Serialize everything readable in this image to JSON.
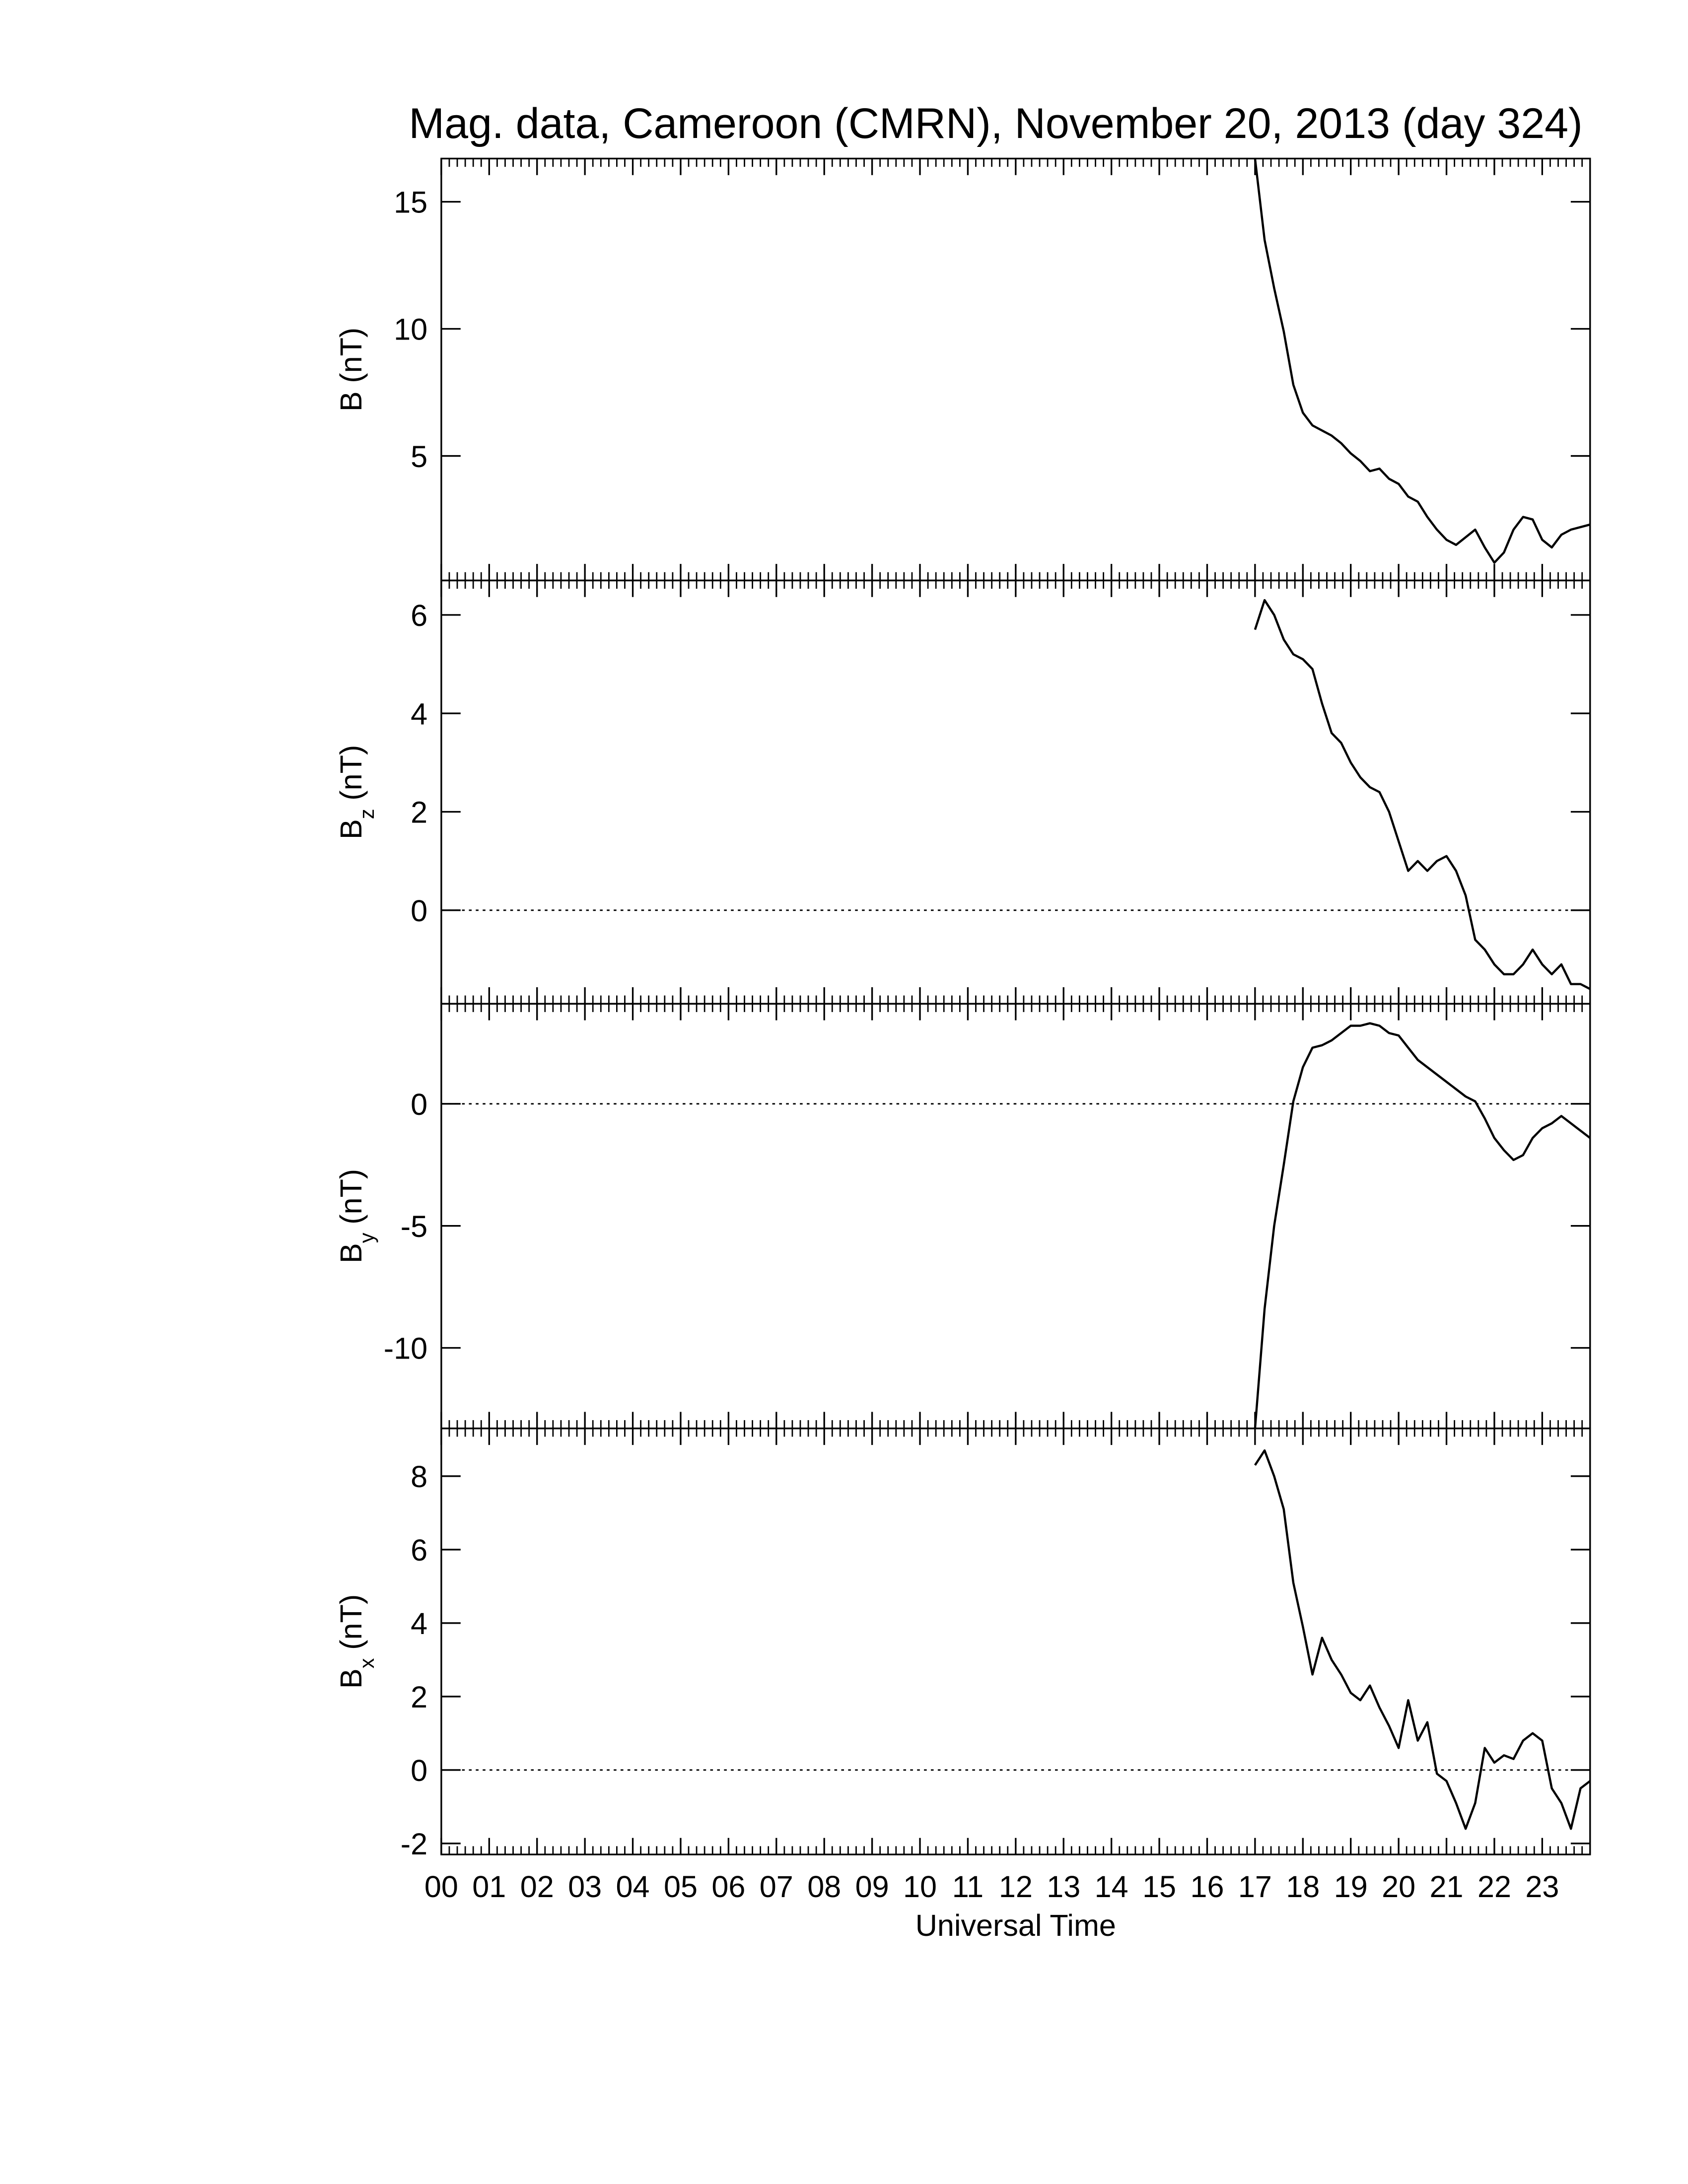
{
  "chart_data": [
    {
      "type": "line",
      "title": "Mag. data, Cameroon (CMRN), November 20, 2013 (day 324)",
      "ylabel": "B",
      "ylabel_unit": "(nT)",
      "color": "#000000",
      "xlim": [
        0,
        24
      ],
      "xticks": [
        0,
        1,
        2,
        3,
        4,
        5,
        6,
        7,
        8,
        9,
        10,
        11,
        12,
        13,
        14,
        15,
        16,
        17,
        18,
        19,
        20,
        21,
        22,
        23
      ],
      "x_minor_per_major": 6,
      "ylim": [
        0.1,
        16.7
      ],
      "yticks": [
        5,
        10,
        15
      ],
      "zero_line": false,
      "x": [
        17.0,
        17.2,
        17.4,
        17.6,
        17.8,
        18.0,
        18.2,
        18.4,
        18.6,
        18.8,
        19.0,
        19.2,
        19.4,
        19.6,
        19.8,
        20.0,
        20.2,
        20.4,
        20.6,
        20.8,
        21.0,
        21.2,
        21.4,
        21.6,
        21.8,
        22.0,
        22.2,
        22.4,
        22.6,
        22.8,
        23.0,
        23.2,
        23.4,
        23.6,
        23.8,
        24.0
      ],
      "values": [
        16.7,
        13.5,
        11.6,
        9.9,
        7.8,
        6.7,
        6.2,
        6.0,
        5.8,
        5.5,
        5.1,
        4.8,
        4.4,
        4.5,
        4.1,
        3.9,
        3.4,
        3.2,
        2.6,
        2.1,
        1.7,
        1.5,
        1.8,
        2.1,
        1.4,
        0.8,
        1.2,
        2.1,
        2.6,
        2.5,
        1.7,
        1.4,
        1.9,
        2.1,
        2.2,
        2.3
      ]
    },
    {
      "type": "line",
      "ylabel": "B",
      "ylabel_sub": "z",
      "ylabel_unit": "(nT)",
      "color": "#000000",
      "xlim": [
        0,
        24
      ],
      "xticks": [
        0,
        1,
        2,
        3,
        4,
        5,
        6,
        7,
        8,
        9,
        10,
        11,
        12,
        13,
        14,
        15,
        16,
        17,
        18,
        19,
        20,
        21,
        22,
        23
      ],
      "x_minor_per_major": 6,
      "ylim": [
        -1.9,
        6.7
      ],
      "yticks": [
        0,
        2,
        4,
        6
      ],
      "zero_line": true,
      "x": [
        17.0,
        17.2,
        17.4,
        17.6,
        17.8,
        18.0,
        18.2,
        18.4,
        18.6,
        18.8,
        19.0,
        19.2,
        19.4,
        19.6,
        19.8,
        20.0,
        20.2,
        20.4,
        20.6,
        20.8,
        21.0,
        21.2,
        21.4,
        21.6,
        21.8,
        22.0,
        22.2,
        22.4,
        22.6,
        22.8,
        23.0,
        23.2,
        23.4,
        23.6,
        23.8,
        24.0
      ],
      "values": [
        5.7,
        6.3,
        6.0,
        5.5,
        5.2,
        5.1,
        4.9,
        4.2,
        3.6,
        3.4,
        3.0,
        2.7,
        2.5,
        2.4,
        2.0,
        1.4,
        0.8,
        1.0,
        0.8,
        1.0,
        1.1,
        0.8,
        0.3,
        -0.6,
        -0.8,
        -1.1,
        -1.3,
        -1.3,
        -1.1,
        -0.8,
        -1.1,
        -1.3,
        -1.1,
        -1.5,
        -1.5,
        -1.6
      ]
    },
    {
      "type": "line",
      "ylabel": "B",
      "ylabel_sub": "y",
      "ylabel_unit": "(nT)",
      "color": "#000000",
      "xlim": [
        0,
        24
      ],
      "xticks": [
        0,
        1,
        2,
        3,
        4,
        5,
        6,
        7,
        8,
        9,
        10,
        11,
        12,
        13,
        14,
        15,
        16,
        17,
        18,
        19,
        20,
        21,
        22,
        23
      ],
      "x_minor_per_major": 6,
      "ylim": [
        -13.3,
        4.1
      ],
      "yticks": [
        -10,
        -5,
        0
      ],
      "zero_line": true,
      "x": [
        17.0,
        17.2,
        17.4,
        17.6,
        17.8,
        18.0,
        18.2,
        18.4,
        18.6,
        18.8,
        19.0,
        19.2,
        19.4,
        19.6,
        19.8,
        20.0,
        20.2,
        20.4,
        20.6,
        20.8,
        21.0,
        21.2,
        21.4,
        21.6,
        21.8,
        22.0,
        22.2,
        22.4,
        22.6,
        22.8,
        23.0,
        23.2,
        23.4,
        23.6,
        23.8,
        24.0
      ],
      "values": [
        -13.3,
        -8.4,
        -5.0,
        -2.5,
        0.1,
        1.5,
        2.3,
        2.4,
        2.6,
        2.9,
        3.2,
        3.2,
        3.3,
        3.2,
        2.9,
        2.8,
        2.3,
        1.8,
        1.5,
        1.2,
        0.9,
        0.6,
        0.3,
        0.1,
        -0.6,
        -1.4,
        -1.9,
        -2.3,
        -2.1,
        -1.4,
        -1.0,
        -0.8,
        -0.5,
        -0.8,
        -1.1,
        -1.4
      ]
    },
    {
      "type": "line",
      "ylabel": "B",
      "ylabel_sub": "x",
      "ylabel_unit": "(nT)",
      "color": "#000000",
      "xlabel": "Universal Time",
      "xlim": [
        0,
        24
      ],
      "xticks": [
        {
          "value": 0,
          "label": "00"
        },
        {
          "value": 1,
          "label": "01"
        },
        {
          "value": 2,
          "label": "02"
        },
        {
          "value": 3,
          "label": "03"
        },
        {
          "value": 4,
          "label": "04"
        },
        {
          "value": 5,
          "label": "05"
        },
        {
          "value": 6,
          "label": "06"
        },
        {
          "value": 7,
          "label": "07"
        },
        {
          "value": 8,
          "label": "08"
        },
        {
          "value": 9,
          "label": "09"
        },
        10,
        11,
        12,
        13,
        14,
        15,
        16,
        17,
        18,
        19,
        20,
        21,
        22,
        23
      ],
      "x_minor_per_major": 6,
      "ylim": [
        -2.3,
        9.3
      ],
      "yticks": [
        -2,
        0,
        2,
        4,
        6,
        8
      ],
      "zero_line": true,
      "x": [
        17.0,
        17.2,
        17.4,
        17.6,
        17.8,
        18.0,
        18.2,
        18.4,
        18.6,
        18.8,
        19.0,
        19.2,
        19.4,
        19.6,
        19.8,
        20.0,
        20.2,
        20.4,
        20.6,
        20.8,
        21.0,
        21.2,
        21.4,
        21.6,
        21.8,
        22.0,
        22.2,
        22.4,
        22.6,
        22.8,
        23.0,
        23.2,
        23.4,
        23.6,
        23.8,
        24.0
      ],
      "values": [
        8.3,
        8.7,
        8.0,
        7.1,
        5.1,
        3.9,
        2.6,
        3.6,
        3.0,
        2.6,
        2.1,
        1.9,
        2.3,
        1.7,
        1.2,
        0.6,
        1.9,
        0.8,
        1.3,
        -0.1,
        -0.3,
        -0.9,
        -1.6,
        -0.9,
        0.6,
        0.2,
        0.4,
        0.3,
        0.8,
        1.0,
        0.8,
        -0.5,
        -0.9,
        -1.6,
        -0.5,
        -0.3
      ]
    }
  ]
}
